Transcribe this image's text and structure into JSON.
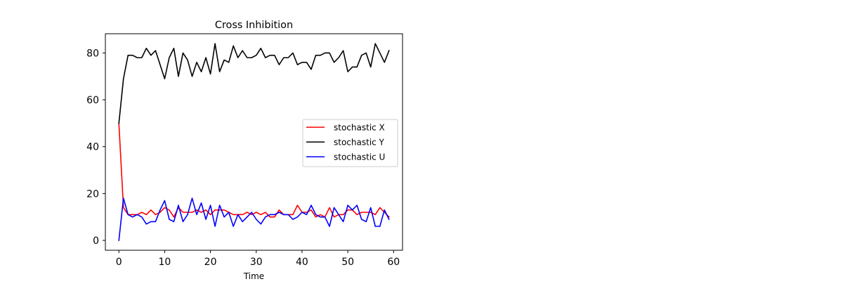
{
  "chart_data": {
    "type": "line",
    "title": "Cross Inhibition",
    "xlabel": "Time",
    "ylabel": "",
    "xlim": [
      -2.95,
      61.95
    ],
    "ylim": [
      -4.2,
      88.2
    ],
    "xticks": [
      0,
      10,
      20,
      30,
      40,
      50,
      60
    ],
    "yticks": [
      0,
      20,
      40,
      60,
      80
    ],
    "grid": false,
    "legend_position": "center-right",
    "x": [
      0,
      1,
      2,
      3,
      4,
      5,
      6,
      7,
      8,
      9,
      10,
      11,
      12,
      13,
      14,
      15,
      16,
      17,
      18,
      19,
      20,
      21,
      22,
      23,
      24,
      25,
      26,
      27,
      28,
      29,
      30,
      31,
      32,
      33,
      34,
      35,
      36,
      37,
      38,
      39,
      40,
      41,
      42,
      43,
      44,
      45,
      46,
      47,
      48,
      49,
      50,
      51,
      52,
      53,
      54,
      55,
      56,
      57,
      58,
      59
    ],
    "series": [
      {
        "name": "stochastic X",
        "color": "#ff0000",
        "values": [
          50,
          14,
          11,
          11,
          11,
          12,
          11,
          13,
          11,
          12,
          14,
          13,
          10,
          14,
          12,
          12,
          12,
          13,
          12,
          13,
          11,
          13,
          13,
          13,
          12,
          11,
          11,
          11,
          12,
          11,
          12,
          11,
          12,
          10,
          10,
          13,
          11,
          11,
          11,
          15,
          12,
          12,
          13,
          10,
          11,
          10,
          14,
          10,
          11,
          11,
          13,
          13,
          11,
          12,
          12,
          12,
          11,
          14,
          12,
          10
        ]
      },
      {
        "name": "stochastic Y",
        "color": "#000000",
        "values": [
          50,
          69,
          79,
          79,
          78,
          78,
          82,
          79,
          81,
          75,
          69,
          78,
          82,
          70,
          80,
          77,
          70,
          76,
          72,
          78,
          71,
          84,
          72,
          77,
          76,
          83,
          78,
          81,
          78,
          78,
          79,
          82,
          78,
          79,
          79,
          75,
          78,
          78,
          80,
          75,
          76,
          76,
          73,
          79,
          79,
          80,
          80,
          76,
          78,
          81,
          72,
          74,
          74,
          79,
          80,
          74,
          84,
          80,
          76,
          81
        ]
      },
      {
        "name": "stochastic U",
        "color": "#0000ff",
        "values": [
          0,
          18,
          11,
          10,
          11,
          10,
          7,
          8,
          8,
          13,
          17,
          9,
          8,
          15,
          8,
          11,
          18,
          11,
          16,
          9,
          15,
          6,
          15,
          10,
          12,
          6,
          11,
          8,
          10,
          12,
          9,
          7,
          10,
          11,
          11,
          12,
          11,
          11,
          9,
          10,
          12,
          11,
          15,
          11,
          10,
          10,
          6,
          14,
          11,
          8,
          15,
          13,
          15,
          9,
          8,
          14,
          6,
          6,
          13,
          9
        ]
      }
    ]
  }
}
